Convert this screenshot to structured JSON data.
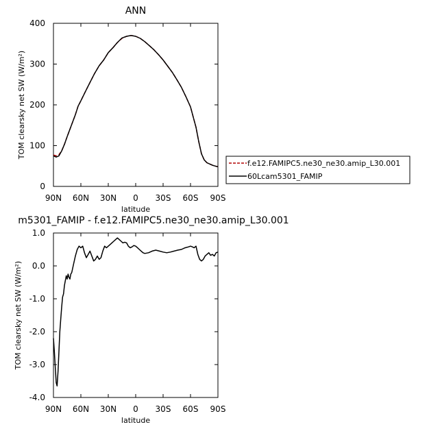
{
  "chart_data": [
    {
      "type": "line",
      "title": "ANN",
      "xlabel": "latitude",
      "ylabel": "TOM clearsky net SW (W/m²)",
      "xlim": [
        90,
        -90
      ],
      "ylim": [
        0,
        400
      ],
      "xticks": [
        90,
        60,
        30,
        0,
        -30,
        -60,
        -90
      ],
      "xtick_labels": [
        "90N",
        "60N",
        "30N",
        "0",
        "30S",
        "60S",
        "90S"
      ],
      "yticks": [
        0,
        100,
        200,
        300,
        400
      ],
      "ytick_labels": [
        "0",
        "100",
        "200",
        "300",
        "400"
      ],
      "legend_position": "right",
      "series": [
        {
          "name": "f.e12.FAMIPC5.ne30_ne30.amip_L30.001",
          "color": "#b00000",
          "dash": "dashed",
          "x": [
            90,
            87,
            84,
            81,
            78,
            75,
            72,
            69,
            66,
            63,
            60,
            55,
            50,
            45,
            40,
            35,
            30,
            25,
            20,
            15,
            10,
            5,
            0,
            -5,
            -10,
            -15,
            -20,
            -25,
            -30,
            -35,
            -40,
            -45,
            -50,
            -55,
            -60,
            -63,
            -66,
            -69,
            -72,
            -75,
            -78,
            -81,
            -84,
            -87,
            -90
          ],
          "y": [
            77,
            75,
            78,
            87,
            103,
            122,
            140,
            158,
            176,
            197,
            210,
            233,
            255,
            277,
            296,
            310,
            328,
            340,
            353,
            363,
            368,
            370,
            368,
            363,
            355,
            345,
            335,
            323,
            310,
            295,
            280,
            262,
            243,
            220,
            195,
            170,
            145,
            110,
            80,
            65,
            58,
            55,
            52,
            50,
            48
          ]
        },
        {
          "name": "60Lcam5301_FAMIP",
          "color": "#000000",
          "dash": "solid",
          "x": [
            90,
            87,
            84,
            81,
            78,
            75,
            72,
            69,
            66,
            63,
            60,
            55,
            50,
            45,
            40,
            35,
            30,
            25,
            20,
            15,
            10,
            5,
            0,
            -5,
            -10,
            -15,
            -20,
            -25,
            -30,
            -35,
            -40,
            -45,
            -50,
            -55,
            -60,
            -63,
            -66,
            -69,
            -72,
            -75,
            -78,
            -81,
            -84,
            -87,
            -90
          ],
          "y": [
            75,
            72,
            75,
            87,
            103,
            122,
            140,
            158,
            176,
            197,
            210,
            233,
            255,
            277,
            296,
            310,
            328,
            340,
            353,
            364,
            368,
            370,
            368,
            363,
            355,
            345,
            335,
            323,
            310,
            295,
            280,
            262,
            243,
            220,
            195,
            170,
            145,
            110,
            80,
            65,
            58,
            55,
            52,
            50,
            48
          ]
        }
      ]
    },
    {
      "type": "line",
      "title": "m5301_FAMIP - f.e12.FAMIPC5.ne30_ne30.amip_L30.001",
      "xlabel": "latitude",
      "ylabel": "TOM clearsky net SW (W/m²)",
      "xlim": [
        90,
        -90
      ],
      "ylim": [
        -4.0,
        1.0
      ],
      "xticks": [
        90,
        60,
        30,
        0,
        -30,
        -60,
        -90
      ],
      "xtick_labels": [
        "90N",
        "60N",
        "30N",
        "0",
        "30S",
        "60S",
        "90S"
      ],
      "yticks": [
        -4.0,
        -3.0,
        -2.0,
        -1.0,
        0.0,
        1.0
      ],
      "ytick_labels": [
        "-4.0",
        "-3.0",
        "-2.0",
        "-1.0",
        "0.0",
        "1.0"
      ],
      "series": [
        {
          "color": "#000000",
          "dash": "solid",
          "x": [
            90,
            89,
            88,
            87,
            86,
            85,
            84,
            83,
            82,
            81,
            80,
            79,
            78,
            77,
            76,
            75,
            74,
            73,
            72,
            71,
            70,
            68,
            66,
            64,
            62,
            60,
            58,
            56,
            54,
            52,
            50,
            48,
            46,
            44,
            42,
            40,
            38,
            36,
            34,
            32,
            30,
            28,
            26,
            24,
            22,
            20,
            18,
            16,
            14,
            12,
            10,
            8,
            6,
            4,
            2,
            0,
            -2,
            -4,
            -6,
            -8,
            -10,
            -14,
            -18,
            -22,
            -26,
            -30,
            -34,
            -38,
            -42,
            -46,
            -50,
            -54,
            -58,
            -60,
            -62,
            -64,
            -66,
            -68,
            -70,
            -72,
            -74,
            -76,
            -78,
            -80,
            -82,
            -84,
            -86,
            -88,
            -90
          ],
          "y": [
            -2.2,
            -2.6,
            -3.1,
            -3.55,
            -3.65,
            -3.2,
            -2.6,
            -2.0,
            -1.6,
            -1.25,
            -0.95,
            -0.85,
            -0.6,
            -0.45,
            -0.3,
            -0.4,
            -0.25,
            -0.35,
            -0.4,
            -0.25,
            -0.2,
            0.05,
            0.3,
            0.5,
            0.6,
            0.55,
            0.6,
            0.4,
            0.25,
            0.35,
            0.45,
            0.3,
            0.15,
            0.2,
            0.3,
            0.2,
            0.25,
            0.45,
            0.6,
            0.55,
            0.6,
            0.65,
            0.7,
            0.75,
            0.8,
            0.85,
            0.8,
            0.75,
            0.7,
            0.72,
            0.7,
            0.6,
            0.55,
            0.58,
            0.62,
            0.6,
            0.55,
            0.5,
            0.45,
            0.4,
            0.38,
            0.4,
            0.45,
            0.48,
            0.45,
            0.42,
            0.4,
            0.42,
            0.45,
            0.48,
            0.5,
            0.55,
            0.58,
            0.6,
            0.58,
            0.55,
            0.6,
            0.35,
            0.2,
            0.15,
            0.2,
            0.3,
            0.35,
            0.4,
            0.32,
            0.35,
            0.3,
            0.4,
            0.42
          ]
        }
      ]
    }
  ]
}
